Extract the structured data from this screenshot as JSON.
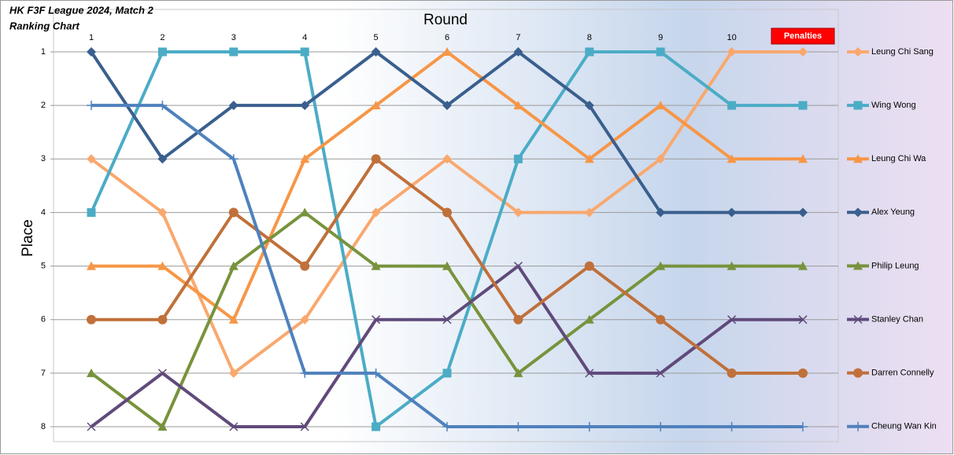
{
  "chart_data": {
    "type": "line",
    "title": "HK F3F League 2024, Match 2",
    "subtitle": "Ranking Chart",
    "x_label": "Round",
    "y_label": "Place",
    "categories": [
      "1",
      "2",
      "3",
      "4",
      "5",
      "6",
      "7",
      "8",
      "9",
      "10",
      "Penalties"
    ],
    "ylim": [
      8,
      1
    ],
    "yticks": [
      1,
      2,
      3,
      4,
      5,
      6,
      7,
      8
    ],
    "grid": true,
    "legend": "right",
    "series": [
      {
        "name": "Leung Chi Sang",
        "color": "#f9a86e",
        "marker": "diamond",
        "values": [
          3,
          4,
          7,
          6,
          4,
          3,
          4,
          4,
          3,
          1,
          1
        ]
      },
      {
        "name": "Wing Wong",
        "color": "#4bacc6",
        "marker": "square",
        "values": [
          4,
          1,
          1,
          1,
          8,
          7,
          3,
          1,
          1,
          2,
          2
        ]
      },
      {
        "name": "Leung Chi Wa",
        "color": "#f79646",
        "marker": "triangle",
        "values": [
          5,
          5,
          6,
          3,
          2,
          1,
          2,
          3,
          2,
          3,
          3
        ]
      },
      {
        "name": "Alex Yeung",
        "color": "#3a5f8e",
        "marker": "diamond",
        "values": [
          1,
          3,
          2,
          2,
          1,
          2,
          1,
          2,
          4,
          4,
          4
        ]
      },
      {
        "name": "Philip Leung",
        "color": "#77933c",
        "marker": "triangle",
        "values": [
          7,
          8,
          5,
          4,
          5,
          5,
          7,
          6,
          5,
          5,
          5
        ]
      },
      {
        "name": "Stanley Chan",
        "color": "#604a7b",
        "marker": "x",
        "values": [
          8,
          7,
          8,
          8,
          6,
          6,
          5,
          7,
          7,
          6,
          6
        ]
      },
      {
        "name": "Darren Connelly",
        "color": "#c0703a",
        "marker": "circle",
        "values": [
          6,
          6,
          4,
          5,
          3,
          4,
          6,
          5,
          6,
          7,
          7
        ]
      },
      {
        "name": "Cheung Wan Kin",
        "color": "#4f81bd",
        "marker": "plus",
        "values": [
          2,
          2,
          3,
          7,
          7,
          8,
          8,
          8,
          8,
          8,
          8
        ]
      }
    ]
  }
}
